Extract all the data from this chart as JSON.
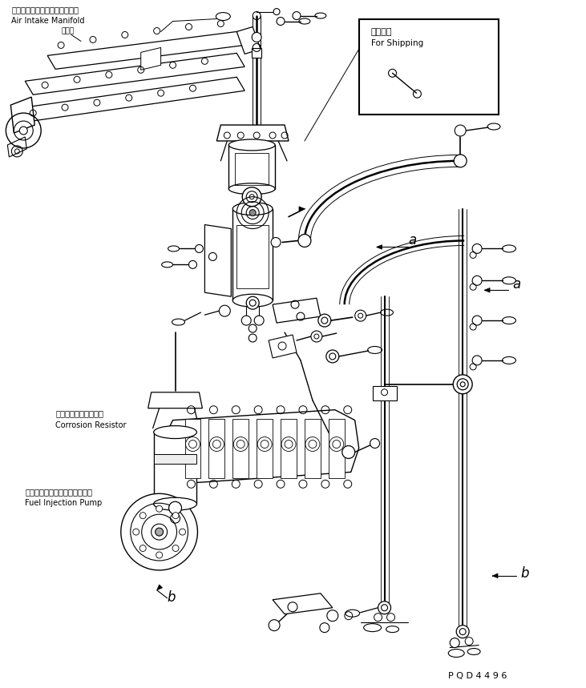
{
  "bg_color": "#ffffff",
  "line_color": "#000000",
  "fig_width": 7.31,
  "fig_height": 8.59,
  "dpi": 100,
  "labels": {
    "air_intake_jp": "エアーインテークマニホールド",
    "air_intake_en": "Air Intake Manifold",
    "corrosion_jp": "コロージョンレジスタ",
    "corrosion_en": "Corrosion Resistor",
    "fuel_pump_jp": "フェルインジェクションポンプ",
    "fuel_pump_en": "Fuel Injection Pump",
    "shipping_jp": "連携部品",
    "shipping_en": "For Shipping",
    "part_id": "P Q D 4 4 9 6",
    "label_a": "a",
    "label_b": "b",
    "relay_jp": "リレー"
  },
  "colors": {
    "line": "#000000",
    "fill": "#ffffff"
  }
}
